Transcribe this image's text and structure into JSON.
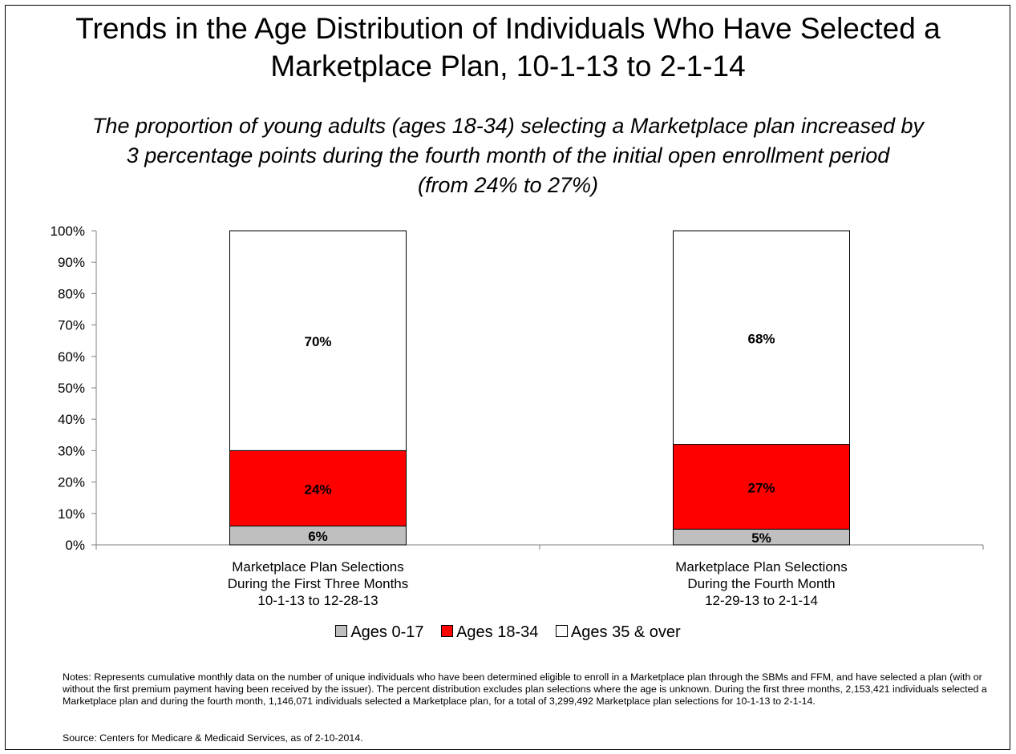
{
  "title": {
    "line1": "Trends in the Age Distribution of Individuals Who Have Selected a",
    "line2": "Marketplace Plan, 10-1-13 to 2-1-14"
  },
  "subtitle": {
    "line1": "The proportion of young adults (ages 18-34) selecting a Marketplace plan increased by",
    "line2": "3 percentage points during the fourth month of the initial open enrollment period",
    "line3": "(from 24% to 27%)"
  },
  "chart_data": {
    "type": "bar",
    "stacked": true,
    "percent": true,
    "ylim": [
      0,
      100
    ],
    "yticks": [
      "0%",
      "10%",
      "20%",
      "30%",
      "40%",
      "50%",
      "60%",
      "70%",
      "80%",
      "90%",
      "100%"
    ],
    "categories": [
      [
        "Marketplace Plan Selections",
        "During the First Three Months",
        "10-1-13 to 12-28-13"
      ],
      [
        "Marketplace Plan Selections",
        "During the Fourth Month",
        "12-29-13 to 2-1-14"
      ]
    ],
    "series": [
      {
        "name": "Ages 0-17",
        "values": [
          6,
          5
        ],
        "labels": [
          "6%",
          "5%"
        ],
        "color": "#bfbfbf"
      },
      {
        "name": "Ages 18-34",
        "values": [
          24,
          27
        ],
        "labels": [
          "24%",
          "27%"
        ],
        "color": "#ff0000"
      },
      {
        "name": "Ages 35 & over",
        "values": [
          70,
          68
        ],
        "labels": [
          "70%",
          "68%"
        ],
        "color": "#ffffff"
      }
    ],
    "legend_position": "bottom"
  },
  "legend": {
    "item1": "Ages 0-17",
    "item2": "Ages 18-34",
    "item3": "Ages 35 & over"
  },
  "notes": "Notes: Represents cumulative monthly data on the number of unique individuals who have been determined eligible to enroll in a Marketplace plan through the SBMs and FFM, and have selected a plan (with or without the first premium payment having been received by the issuer). The percent distribution excludes plan selections where the age is unknown. During the first three months, 2,153,421 individuals selected a Marketplace plan and during the fourth month, 1,146,071 individuals selected a Marketplace plan, for a total of 3,299,492 Marketplace plan selections for 10-1-13 to 2-1-14.",
  "source": "Source: Centers for Medicare & Medicaid Services, as of 2-10-2014."
}
